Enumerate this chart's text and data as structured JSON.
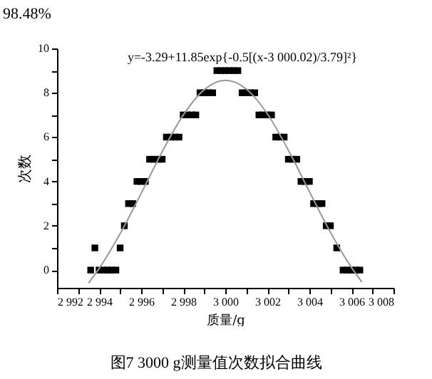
{
  "chart_data": {
    "type": "scatter",
    "xlabel": "质量/g",
    "ylabel": "次数",
    "annotations": [
      "98.48%",
      "y=-3.29+11.85exp{-0.5[(x-3 000.02)/3.79]²}",
      "图7 3000 g测量值次数拟合曲线"
    ],
    "xlim": [
      2992,
      3008
    ],
    "xticks": [
      {
        "value": 2992,
        "label": "2 992"
      },
      {
        "value": 2993,
        "label": null
      },
      {
        "value": 2994,
        "label": "2 994"
      },
      {
        "value": 2995,
        "label": null
      },
      {
        "value": 2996,
        "label": "2 996"
      },
      {
        "value": 2997,
        "label": null
      },
      {
        "value": 2998,
        "label": "2 998"
      },
      {
        "value": 2999,
        "label": null
      },
      {
        "value": 3000,
        "label": "3 000"
      },
      {
        "value": 3001,
        "label": null
      },
      {
        "value": 3002,
        "label": "3 002"
      },
      {
        "value": 3003,
        "label": null
      },
      {
        "value": 3004,
        "label": "3 004"
      },
      {
        "value": 3005,
        "label": null
      },
      {
        "value": 3006,
        "label": "3 006"
      },
      {
        "value": 3007,
        "label": null
      },
      {
        "value": 3008,
        "label": "3 008"
      }
    ],
    "ylim": [
      -0.8,
      10
    ],
    "yticks": [
      0,
      {
        "value": 1,
        "label": null
      },
      2,
      {
        "value": 3,
        "label": null
      },
      4,
      {
        "value": 5,
        "label": null
      },
      6,
      {
        "value": 7,
        "label": null
      },
      8,
      {
        "value": 9,
        "label": null
      },
      10
    ],
    "grid": false,
    "legend": false,
    "series": [
      {
        "marker": "square",
        "color": "#000000",
        "x": [
          2993.6,
          2993.8,
          2994.0,
          2994.2,
          2994.4,
          2994.6,
          2994.8,
          2995.0,
          2995.2,
          2995.4,
          2995.6,
          2995.8,
          2996.0,
          2996.2,
          2996.4,
          2996.6,
          2996.8,
          2997.0,
          2997.2,
          2997.4,
          2997.6,
          2997.8,
          2998.0,
          2998.2,
          2998.4,
          2998.6,
          2998.8,
          2999.0,
          2999.2,
          2999.4,
          2999.6,
          2999.8,
          3000.0,
          3000.2,
          3000.4,
          3000.6,
          3000.8,
          3001.0,
          3001.2,
          3001.4,
          3001.6,
          3001.8,
          3002.0,
          3002.2,
          3002.4,
          3002.6,
          3002.8,
          3003.0,
          3003.2,
          3003.4,
          3003.6,
          3003.8,
          3004.0,
          3004.2,
          3004.4,
          3004.6,
          3004.8,
          3005.0,
          3005.3,
          3005.6,
          3005.8,
          3006.0,
          3006.2,
          3006.4
        ],
        "values": [
          0,
          1,
          0,
          0,
          0,
          0,
          0,
          1,
          2,
          3,
          3,
          4,
          4,
          4,
          5,
          5,
          5,
          5,
          6,
          6,
          6,
          6,
          7,
          7,
          7,
          7,
          8,
          8,
          8,
          8,
          9,
          9,
          9,
          9,
          9,
          9,
          8,
          8,
          8,
          8,
          7,
          7,
          7,
          7,
          6,
          6,
          6,
          5,
          5,
          5,
          4,
          4,
          4,
          3,
          3,
          3,
          2,
          2,
          1,
          0,
          0,
          0,
          0,
          0
        ]
      },
      {
        "type": "line",
        "color": "#999999",
        "x": [
          2993.5,
          2994,
          2995,
          2996,
          2997,
          2998,
          2999,
          3000,
          3001,
          3002,
          3003,
          3004,
          3005,
          3006,
          3006.5
        ],
        "values": [
          -0.59,
          0.07,
          1.64,
          3.46,
          5.34,
          6.99,
          8.14,
          8.56,
          8.17,
          7.05,
          5.41,
          3.54,
          1.71,
          0.12,
          -0.54
        ]
      }
    ]
  }
}
